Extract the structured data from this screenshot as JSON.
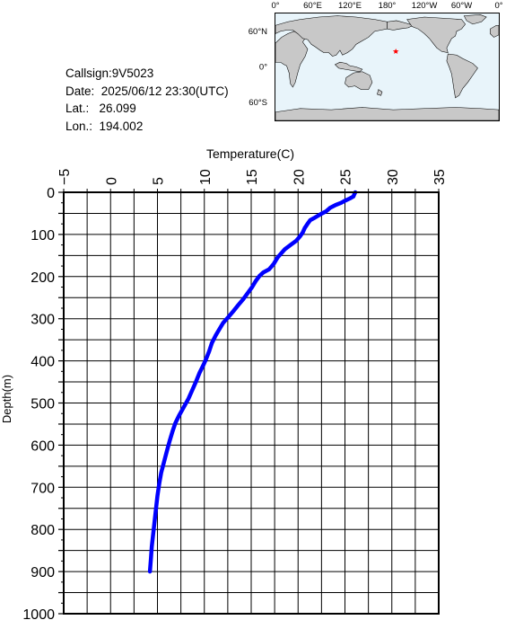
{
  "info": {
    "callsign": "Callsign:9V5023",
    "date": "Date:  2025/06/12 23:30(UTC)",
    "lat": "Lat.:   26.099",
    "lon": "Lon.:  194.002"
  },
  "map": {
    "top_labels": [
      "0°",
      "60°E",
      "120°E",
      "180°",
      "120°W",
      "60°W",
      "0°"
    ],
    "left_labels": [
      "60°N",
      "0°",
      "60°S"
    ],
    "marker": {
      "lat": 26.099,
      "lon": 194.002,
      "color": "#ff0000",
      "icon": "star-icon"
    },
    "colors": {
      "land": "#c8c8c8",
      "ocean": "#e8f4fa"
    }
  },
  "chart_data": {
    "type": "line",
    "xlabel": "Temperature(C)",
    "ylabel": "Depth(m)",
    "xlim": [
      -5,
      35
    ],
    "ylim": [
      0,
      1000
    ],
    "x_ticks": [
      "−5",
      "0",
      "5",
      "10",
      "15",
      "20",
      "25",
      "30",
      "35"
    ],
    "y_ticks": [
      "0",
      "100",
      "200",
      "300",
      "400",
      "500",
      "600",
      "700",
      "800",
      "900",
      "1000"
    ],
    "grid": true,
    "x_axis_position": "top",
    "y_inverted": true,
    "series": [
      {
        "color": "#0000ff",
        "points": [
          [
            26.1,
            0
          ],
          [
            26.0,
            5
          ],
          [
            25.9,
            10
          ],
          [
            25.5,
            15
          ],
          [
            25.0,
            20
          ],
          [
            24.6,
            25
          ],
          [
            24.0,
            30
          ],
          [
            23.4,
            37
          ],
          [
            23.0,
            45
          ],
          [
            22.4,
            52
          ],
          [
            21.8,
            60
          ],
          [
            21.3,
            66
          ],
          [
            21.0,
            75
          ],
          [
            20.7,
            85
          ],
          [
            20.5,
            95
          ],
          [
            20.2,
            105
          ],
          [
            19.8,
            115
          ],
          [
            19.2,
            125
          ],
          [
            18.6,
            135
          ],
          [
            18.2,
            145
          ],
          [
            17.8,
            155
          ],
          [
            17.4,
            170
          ],
          [
            16.9,
            183
          ],
          [
            16.3,
            190
          ],
          [
            15.9,
            198
          ],
          [
            15.5,
            210
          ],
          [
            15.1,
            225
          ],
          [
            14.6,
            240
          ],
          [
            14.1,
            255
          ],
          [
            13.6,
            268
          ],
          [
            13.1,
            282
          ],
          [
            12.6,
            295
          ],
          [
            12.0,
            310
          ],
          [
            11.6,
            325
          ],
          [
            11.2,
            340
          ],
          [
            10.8,
            358
          ],
          [
            10.5,
            378
          ],
          [
            10.2,
            395
          ],
          [
            9.9,
            410
          ],
          [
            9.5,
            428
          ],
          [
            9.1,
            450
          ],
          [
            8.7,
            470
          ],
          [
            8.3,
            490
          ],
          [
            7.8,
            510
          ],
          [
            7.3,
            530
          ],
          [
            6.9,
            548
          ],
          [
            6.6,
            568
          ],
          [
            6.3,
            590
          ],
          [
            6.0,
            615
          ],
          [
            5.7,
            640
          ],
          [
            5.4,
            665
          ],
          [
            5.2,
            690
          ],
          [
            5.0,
            720
          ],
          [
            4.8,
            760
          ],
          [
            4.6,
            800
          ],
          [
            4.4,
            840
          ],
          [
            4.3,
            870
          ],
          [
            4.2,
            900
          ]
        ]
      }
    ]
  }
}
